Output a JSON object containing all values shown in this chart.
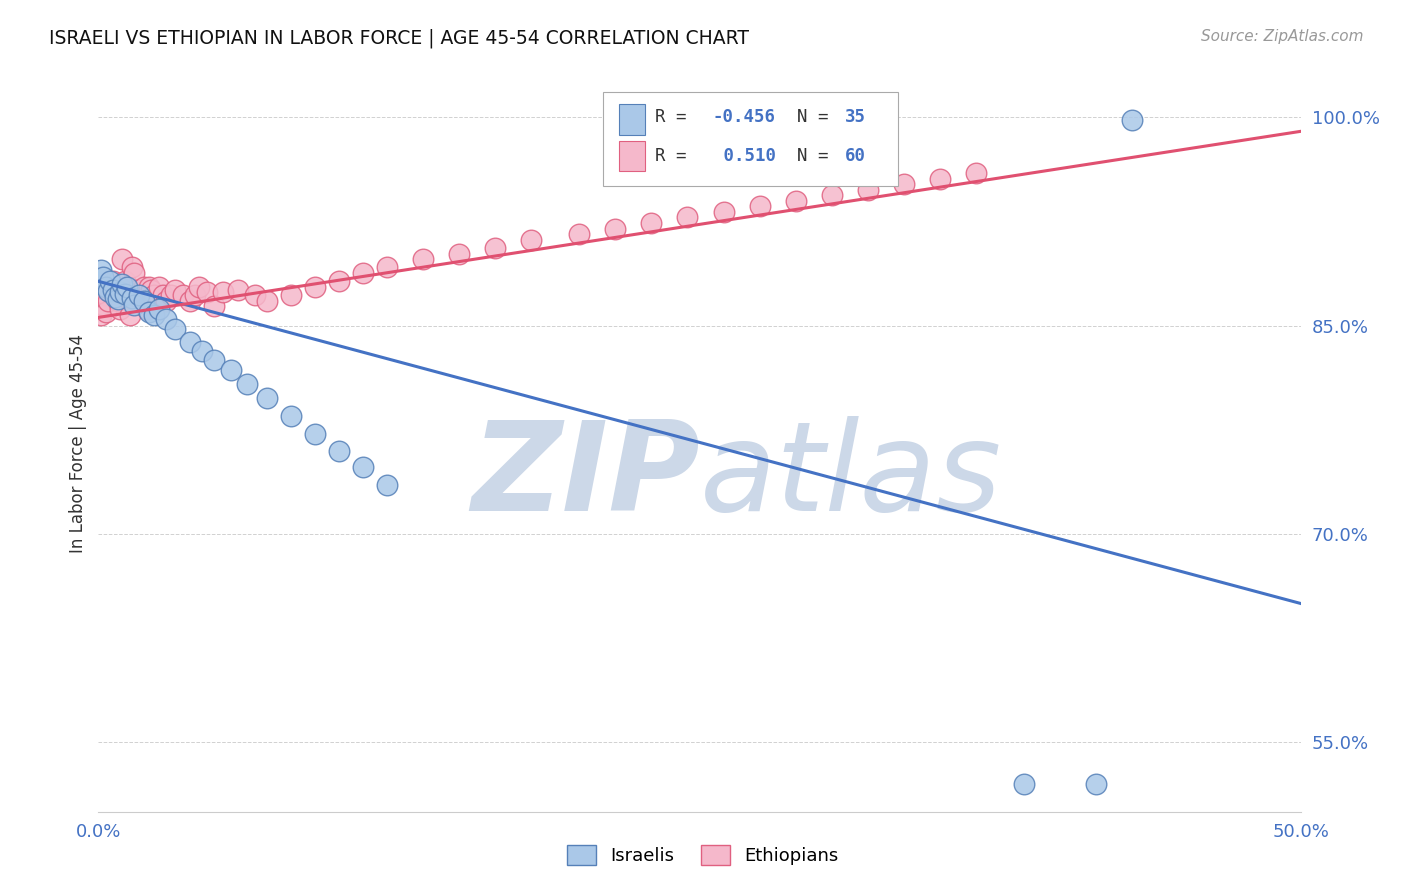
{
  "title": "ISRAELI VS ETHIOPIAN IN LABOR FORCE | AGE 45-54 CORRELATION CHART",
  "source": "Source: ZipAtlas.com",
  "ylabel": "In Labor Force | Age 45-54",
  "xlim": [
    0.0,
    0.5
  ],
  "ylim": [
    0.5,
    1.03
  ],
  "xtick_positions": [
    0.0,
    0.05,
    0.1,
    0.15,
    0.2,
    0.25,
    0.3,
    0.35,
    0.4,
    0.45,
    0.5
  ],
  "xticklabels": [
    "0.0%",
    "",
    "",
    "",
    "",
    "",
    "",
    "",
    "",
    "",
    "50.0%"
  ],
  "ytick_positions": [
    0.55,
    0.7,
    0.85,
    1.0
  ],
  "yticklabels": [
    "55.0%",
    "70.0%",
    "85.0%",
    "100.0%"
  ],
  "israeli_R": -0.456,
  "israeli_N": 35,
  "ethiopian_R": 0.51,
  "ethiopian_N": 60,
  "israeli_color": "#aac8e8",
  "ethiopian_color": "#f5b8cb",
  "israeli_edge_color": "#5580b8",
  "ethiopian_edge_color": "#e06080",
  "israeli_line_color": "#4472c4",
  "ethiopian_line_color": "#e05070",
  "watermark_color": "#ccd8e8",
  "tick_color": "#4472c4",
  "isr_x": [
    0.001,
    0.002,
    0.003,
    0.004,
    0.005,
    0.006,
    0.007,
    0.008,
    0.009,
    0.01,
    0.011,
    0.012,
    0.014,
    0.015,
    0.017,
    0.019,
    0.021,
    0.023,
    0.025,
    0.028,
    0.032,
    0.038,
    0.043,
    0.048,
    0.055,
    0.062,
    0.07,
    0.08,
    0.09,
    0.1,
    0.11,
    0.12,
    0.385,
    0.415,
    0.43
  ],
  "isr_y": [
    0.89,
    0.885,
    0.878,
    0.875,
    0.882,
    0.876,
    0.871,
    0.869,
    0.874,
    0.88,
    0.873,
    0.878,
    0.87,
    0.865,
    0.872,
    0.868,
    0.86,
    0.858,
    0.862,
    0.855,
    0.848,
    0.838,
    0.832,
    0.825,
    0.818,
    0.808,
    0.798,
    0.785,
    0.772,
    0.76,
    0.748,
    0.735,
    0.52,
    0.52,
    0.998
  ],
  "eth_x": [
    0.001,
    0.002,
    0.003,
    0.003,
    0.004,
    0.005,
    0.006,
    0.007,
    0.008,
    0.009,
    0.01,
    0.011,
    0.012,
    0.013,
    0.014,
    0.015,
    0.016,
    0.017,
    0.018,
    0.019,
    0.02,
    0.021,
    0.022,
    0.023,
    0.025,
    0.027,
    0.028,
    0.03,
    0.032,
    0.035,
    0.038,
    0.04,
    0.042,
    0.045,
    0.048,
    0.052,
    0.058,
    0.065,
    0.07,
    0.08,
    0.09,
    0.1,
    0.11,
    0.12,
    0.135,
    0.15,
    0.165,
    0.18,
    0.2,
    0.215,
    0.23,
    0.245,
    0.26,
    0.275,
    0.29,
    0.305,
    0.32,
    0.335,
    0.35,
    0.365
  ],
  "eth_y": [
    0.858,
    0.865,
    0.872,
    0.86,
    0.868,
    0.874,
    0.882,
    0.876,
    0.868,
    0.862,
    0.898,
    0.882,
    0.87,
    0.858,
    0.892,
    0.888,
    0.876,
    0.87,
    0.872,
    0.878,
    0.862,
    0.878,
    0.876,
    0.872,
    0.878,
    0.872,
    0.868,
    0.872,
    0.876,
    0.872,
    0.868,
    0.872,
    0.878,
    0.874,
    0.864,
    0.874,
    0.876,
    0.872,
    0.868,
    0.872,
    0.878,
    0.882,
    0.888,
    0.892,
    0.898,
    0.902,
    0.906,
    0.912,
    0.916,
    0.92,
    0.924,
    0.928,
    0.932,
    0.936,
    0.94,
    0.944,
    0.948,
    0.952,
    0.956,
    0.96
  ]
}
